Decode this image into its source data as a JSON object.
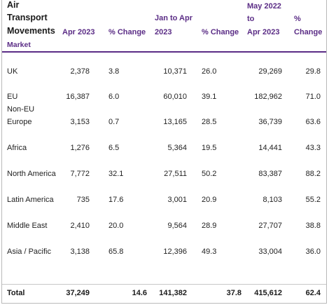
{
  "table": {
    "title_lines": [
      "Air",
      "Transport",
      "Movements"
    ],
    "subheader": "Market",
    "headers": {
      "apr": "Apr 2023",
      "pct1": "% Change",
      "jan_apr_1": "Jan to Apr",
      "jan_apr_2": "2023",
      "pct2": "% Change",
      "may_1": "May 2022",
      "may_2": "to",
      "may_3": "Apr 2023",
      "pct3_1": "%",
      "pct3_2": "Change"
    },
    "rows": [
      {
        "market": [
          "UK"
        ],
        "apr": "2,378",
        "pct1": "3.8",
        "janapr": "10,371",
        "pct2": "26.0",
        "may": "29,269",
        "pct3": "29.8"
      },
      {
        "market": [
          "EU"
        ],
        "apr": "16,387",
        "pct1": "6.0",
        "janapr": "60,010",
        "pct2": "39.1",
        "may": "182,962",
        "pct3": "71.0"
      },
      {
        "market": [
          "Non-EU",
          "Europe"
        ],
        "apr": "3,153",
        "pct1": "0.7",
        "janapr": "13,165",
        "pct2": "28.5",
        "may": "36,739",
        "pct3": "63.6"
      },
      {
        "market": [
          "Africa"
        ],
        "apr": "1,276",
        "pct1": "6.5",
        "janapr": "5,364",
        "pct2": "19.5",
        "may": "14,441",
        "pct3": "43.3"
      },
      {
        "market": [
          "North America"
        ],
        "apr": "7,772",
        "pct1": "32.1",
        "janapr": "27,511",
        "pct2": "50.2",
        "may": "83,387",
        "pct3": "88.2"
      },
      {
        "market": [
          "Latin America"
        ],
        "apr": "735",
        "pct1": "17.6",
        "janapr": "3,001",
        "pct2": "20.9",
        "may": "8,103",
        "pct3": "55.2"
      },
      {
        "market": [
          "Middle East"
        ],
        "apr": "2,410",
        "pct1": "20.0",
        "janapr": "9,564",
        "pct2": "28.9",
        "may": "27,707",
        "pct3": "38.8"
      },
      {
        "market": [
          "Asia / Pacific"
        ],
        "apr": "3,138",
        "pct1": "65.8",
        "janapr": "12,396",
        "pct2": "49.3",
        "may": "33,004",
        "pct3": "36.0"
      }
    ],
    "total": {
      "market": "Total",
      "apr": "37,249",
      "pct1": "14.6",
      "janapr": "141,382",
      "pct2": "37.8",
      "may": "415,612",
      "pct3": "62.4"
    }
  }
}
